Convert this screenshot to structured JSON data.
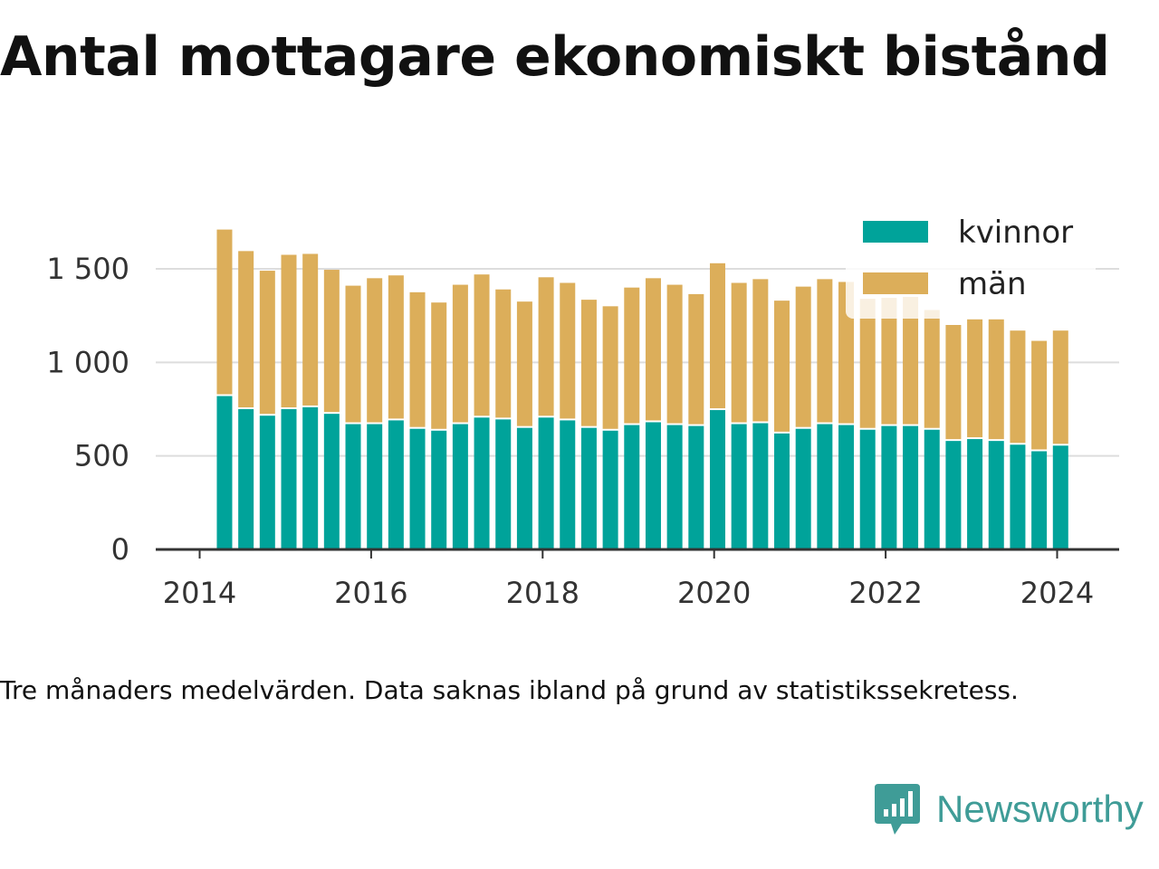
{
  "title": "Antal mottagare ekonomiskt bistånd",
  "caption": "Tre månaders medelvärden. Data saknas ibland på grund av statistikssekretess.",
  "brand": {
    "name": "Newsworthy",
    "icon": "newsworthy-logo-icon",
    "color": "#3f9c97"
  },
  "chart_data": {
    "type": "bar",
    "stacked": true,
    "title": "Antal mottagare ekonomiskt bistånd",
    "xlabel": "",
    "ylabel": "",
    "ylim": [
      0,
      1800
    ],
    "yticks": [
      0,
      500,
      1000,
      1500
    ],
    "ytick_labels": [
      "0",
      "500",
      "1 000",
      "1 500"
    ],
    "xlim": [
      2013.8,
      2024.75
    ],
    "xticks": [
      2014,
      2016,
      2018,
      2020,
      2022,
      2024
    ],
    "xtick_labels": [
      "2014",
      "2016",
      "2018",
      "2020",
      "2022",
      "2024"
    ],
    "grid": true,
    "legend_position": "top-right",
    "x": [
      2014.29,
      2014.54,
      2014.79,
      2015.04,
      2015.29,
      2015.54,
      2015.79,
      2016.04,
      2016.29,
      2016.54,
      2016.79,
      2017.04,
      2017.29,
      2017.54,
      2017.79,
      2018.04,
      2018.29,
      2018.54,
      2018.79,
      2019.04,
      2019.29,
      2019.54,
      2019.79,
      2020.04,
      2020.29,
      2020.54,
      2020.79,
      2021.04,
      2021.29,
      2021.54,
      2021.79,
      2022.04,
      2022.29,
      2022.54,
      2022.79,
      2023.04,
      2023.29,
      2023.54,
      2023.79,
      2024.04
    ],
    "series": [
      {
        "name": "kvinnor",
        "color": "#00a39a",
        "values": [
          820,
          750,
          715,
          750,
          760,
          725,
          670,
          670,
          690,
          645,
          635,
          670,
          705,
          695,
          650,
          705,
          690,
          650,
          635,
          665,
          680,
          665,
          660,
          745,
          670,
          675,
          620,
          645,
          670,
          665,
          640,
          660,
          660,
          640,
          580,
          590,
          580,
          560,
          525,
          555
        ]
      },
      {
        "name": "män",
        "color": "#dcae5a",
        "values": [
          890,
          845,
          775,
          825,
          820,
          770,
          740,
          780,
          775,
          730,
          685,
          745,
          765,
          695,
          675,
          750,
          735,
          685,
          665,
          735,
          770,
          750,
          705,
          785,
          755,
          770,
          710,
          760,
          775,
          765,
          700,
          685,
          690,
          640,
          620,
          640,
          650,
          610,
          590,
          615
        ]
      }
    ]
  }
}
